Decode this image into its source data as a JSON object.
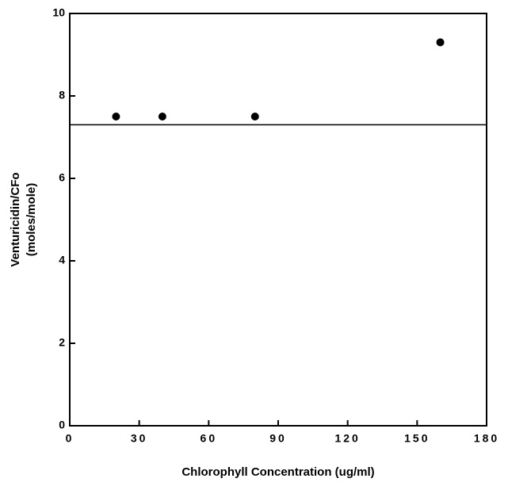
{
  "chart_data": {
    "type": "scatter",
    "xlabel": "Chlorophyll  Concentration  (ug/ml)",
    "ylabel": [
      "Venturicidin/CFo",
      "(moles/mole)"
    ],
    "x": [
      20,
      40,
      80,
      160
    ],
    "values": [
      7.5,
      7.5,
      7.5,
      9.3
    ],
    "reference_line": 7.3,
    "xlim": [
      0,
      180
    ],
    "xticks": [
      0,
      30,
      60,
      90,
      120,
      150,
      180
    ],
    "ylim": [
      0,
      10
    ],
    "yticks": [
      0,
      2,
      4,
      6,
      8,
      10
    ],
    "color": "#000000"
  }
}
